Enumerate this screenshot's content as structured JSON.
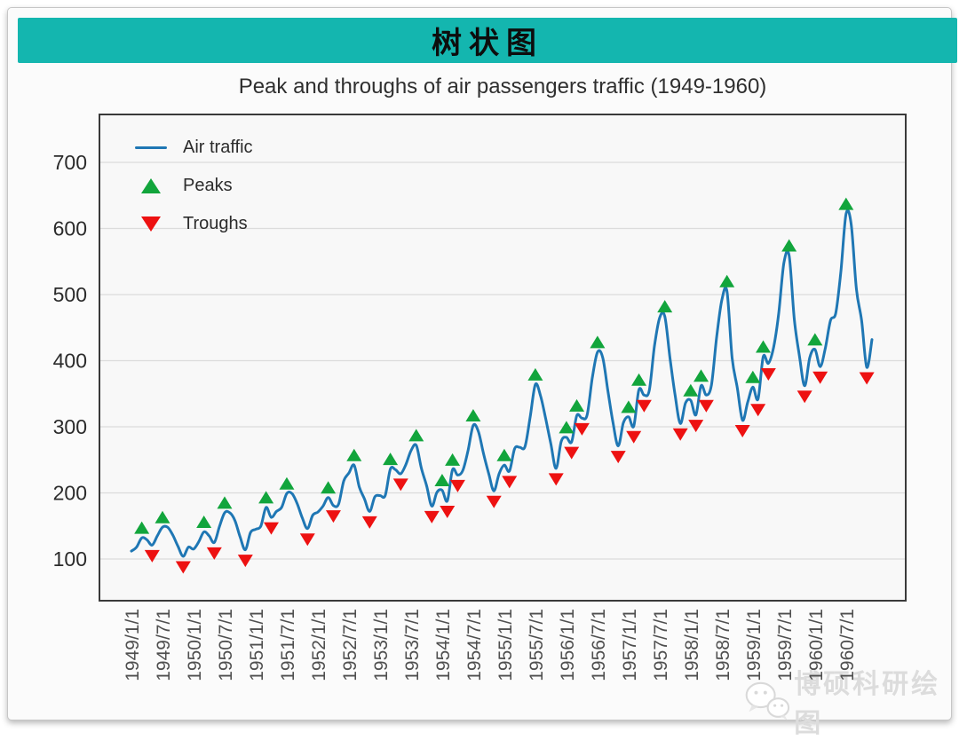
{
  "banner": {
    "title": "树状图"
  },
  "watermark": {
    "text": "博硕科研绘图"
  },
  "legend": {
    "items": [
      {
        "label": "Air traffic",
        "type": "line"
      },
      {
        "label": "Peaks",
        "type": "triangle-up"
      },
      {
        "label": "Troughs",
        "type": "triangle-down"
      }
    ]
  },
  "colors": {
    "banner_teal": "#14b6af",
    "line_blue": "#1f77b4",
    "peak_green": "#12a53c",
    "trough_red": "#ed1111",
    "grid_gray": "#dcdcdc",
    "frame_gray": "#3a3a3a"
  },
  "chart_data": {
    "type": "line",
    "title": "Peak and throughs of air passengers traffic (1949-1960)",
    "xlabel": "",
    "ylabel": "",
    "x_start": "1949/1/1",
    "x_interval": "monthly",
    "x_tick_labels": [
      "1949/1/1",
      "1949/7/1",
      "1950/1/1",
      "1950/7/1",
      "1951/1/1",
      "1951/7/1",
      "1952/1/1",
      "1952/7/1",
      "1953/1/1",
      "1953/7/1",
      "1954/1/1",
      "1954/7/1",
      "1955/1/1",
      "1955/7/1",
      "1956/1/1",
      "1956/7/1",
      "1957/1/1",
      "1957/7/1",
      "1958/1/1",
      "1958/7/1",
      "1959/1/1",
      "1959/7/1",
      "1960/1/1",
      "1960/7/1"
    ],
    "x_tick_rotation": 90,
    "y_ticks": [
      100,
      200,
      300,
      400,
      500,
      600,
      700
    ],
    "ylim": [
      40,
      770
    ],
    "grid": "horizontal",
    "legend_position": "upper-left",
    "series": [
      {
        "name": "Air traffic",
        "values": [
          112,
          118,
          132,
          129,
          121,
          135,
          148,
          148,
          136,
          119,
          104,
          118,
          115,
          126,
          141,
          135,
          125,
          149,
          170,
          170,
          158,
          133,
          114,
          140,
          145,
          150,
          178,
          163,
          172,
          178,
          199,
          199,
          184,
          162,
          146,
          166,
          171,
          180,
          193,
          181,
          183,
          218,
          230,
          242,
          209,
          191,
          172,
          194,
          196,
          196,
          236,
          235,
          229,
          243,
          264,
          272,
          237,
          211,
          180,
          201,
          204,
          188,
          235,
          227,
          234,
          264,
          302,
          293,
          259,
          229,
          203,
          229,
          242,
          233,
          267,
          269,
          270,
          315,
          364,
          347,
          312,
          274,
          237,
          278,
          284,
          277,
          317,
          313,
          318,
          374,
          413,
          405,
          355,
          306,
          271,
          306,
          315,
          301,
          356,
          348,
          355,
          422,
          465,
          467,
          404,
          347,
          305,
          336,
          340,
          318,
          362,
          348,
          363,
          435,
          491,
          505,
          404,
          359,
          310,
          337,
          360,
          342,
          406,
          396,
          420,
          472,
          548,
          559,
          463,
          407,
          362,
          405,
          417,
          391,
          419,
          461,
          472,
          535,
          622,
          606,
          508,
          461,
          390,
          432
        ]
      }
    ],
    "peaks": [
      {
        "date": "1949/3/1",
        "value": 132
      },
      {
        "date": "1949/7/1",
        "value": 148
      },
      {
        "date": "1950/3/1",
        "value": 141
      },
      {
        "date": "1950/7/1",
        "value": 170
      },
      {
        "date": "1951/3/1",
        "value": 178
      },
      {
        "date": "1951/7/1",
        "value": 199
      },
      {
        "date": "1952/3/1",
        "value": 193
      },
      {
        "date": "1952/8/1",
        "value": 242
      },
      {
        "date": "1953/3/1",
        "value": 236
      },
      {
        "date": "1953/8/1",
        "value": 272
      },
      {
        "date": "1954/1/1",
        "value": 204
      },
      {
        "date": "1954/3/1",
        "value": 235
      },
      {
        "date": "1954/7/1",
        "value": 302
      },
      {
        "date": "1955/1/1",
        "value": 242
      },
      {
        "date": "1955/7/1",
        "value": 364
      },
      {
        "date": "1956/1/1",
        "value": 284
      },
      {
        "date": "1956/3/1",
        "value": 317
      },
      {
        "date": "1956/7/1",
        "value": 413
      },
      {
        "date": "1957/1/1",
        "value": 315
      },
      {
        "date": "1957/3/1",
        "value": 356
      },
      {
        "date": "1957/8/1",
        "value": 467
      },
      {
        "date": "1958/1/1",
        "value": 340
      },
      {
        "date": "1958/3/1",
        "value": 362
      },
      {
        "date": "1958/8/1",
        "value": 505
      },
      {
        "date": "1959/1/1",
        "value": 360
      },
      {
        "date": "1959/3/1",
        "value": 406
      },
      {
        "date": "1959/8/1",
        "value": 559
      },
      {
        "date": "1960/1/1",
        "value": 417
      },
      {
        "date": "1960/7/1",
        "value": 622
      }
    ],
    "troughs": [
      {
        "date": "1949/5/1",
        "value": 121
      },
      {
        "date": "1949/11/1",
        "value": 104
      },
      {
        "date": "1950/5/1",
        "value": 125
      },
      {
        "date": "1950/11/1",
        "value": 114
      },
      {
        "date": "1951/4/1",
        "value": 163
      },
      {
        "date": "1951/11/1",
        "value": 146
      },
      {
        "date": "1952/4/1",
        "value": 181
      },
      {
        "date": "1952/11/1",
        "value": 172
      },
      {
        "date": "1953/5/1",
        "value": 229
      },
      {
        "date": "1953/11/1",
        "value": 180
      },
      {
        "date": "1954/2/1",
        "value": 188
      },
      {
        "date": "1954/4/1",
        "value": 227
      },
      {
        "date": "1954/11/1",
        "value": 203
      },
      {
        "date": "1955/2/1",
        "value": 233
      },
      {
        "date": "1955/11/1",
        "value": 237
      },
      {
        "date": "1956/2/1",
        "value": 277
      },
      {
        "date": "1956/4/1",
        "value": 313
      },
      {
        "date": "1956/11/1",
        "value": 271
      },
      {
        "date": "1957/2/1",
        "value": 301
      },
      {
        "date": "1957/4/1",
        "value": 348
      },
      {
        "date": "1957/11/1",
        "value": 305
      },
      {
        "date": "1958/2/1",
        "value": 318
      },
      {
        "date": "1958/4/1",
        "value": 348
      },
      {
        "date": "1958/11/1",
        "value": 310
      },
      {
        "date": "1959/2/1",
        "value": 342
      },
      {
        "date": "1959/4/1",
        "value": 396
      },
      {
        "date": "1959/11/1",
        "value": 362
      },
      {
        "date": "1960/2/1",
        "value": 391
      },
      {
        "date": "1960/11/1",
        "value": 390
      }
    ]
  }
}
